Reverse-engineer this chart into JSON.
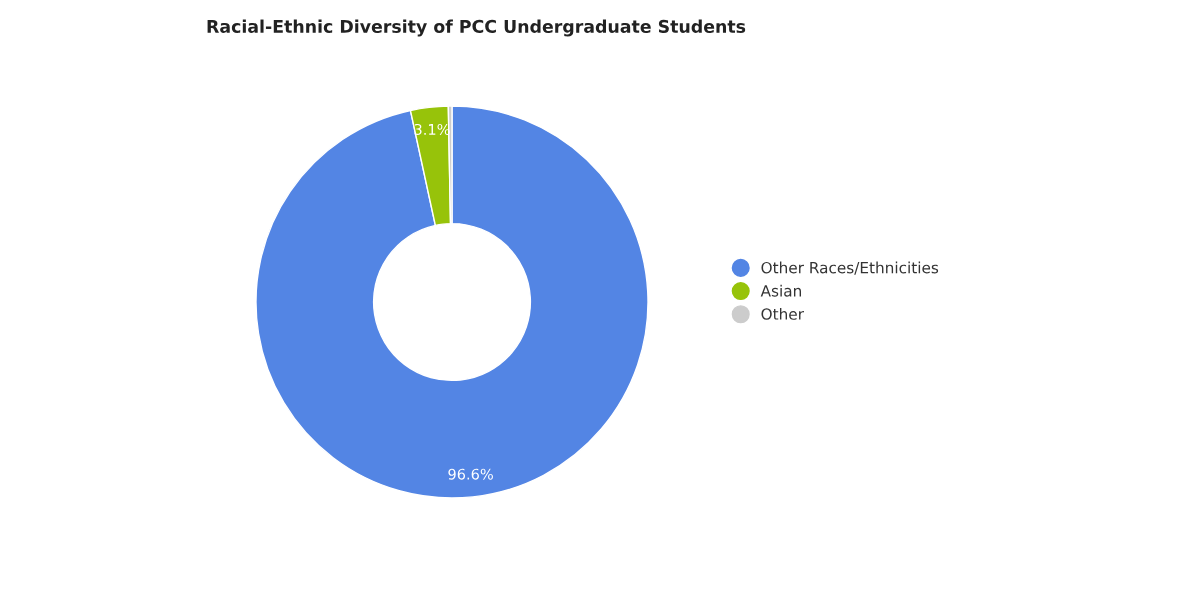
{
  "chart_data": {
    "type": "donut",
    "title": "Racial-Ethnic Diversity of PCC Undergraduate Students",
    "categories": [
      "Other Races/Ethnicities",
      "Asian",
      "Other"
    ],
    "values": [
      96.6,
      3.1,
      0.3
    ],
    "colors": [
      "#5385e4",
      "#97c30a",
      "#cccccc"
    ],
    "value_labels": [
      "96.6%",
      "3.1%",
      null
    ],
    "legend": "right"
  }
}
